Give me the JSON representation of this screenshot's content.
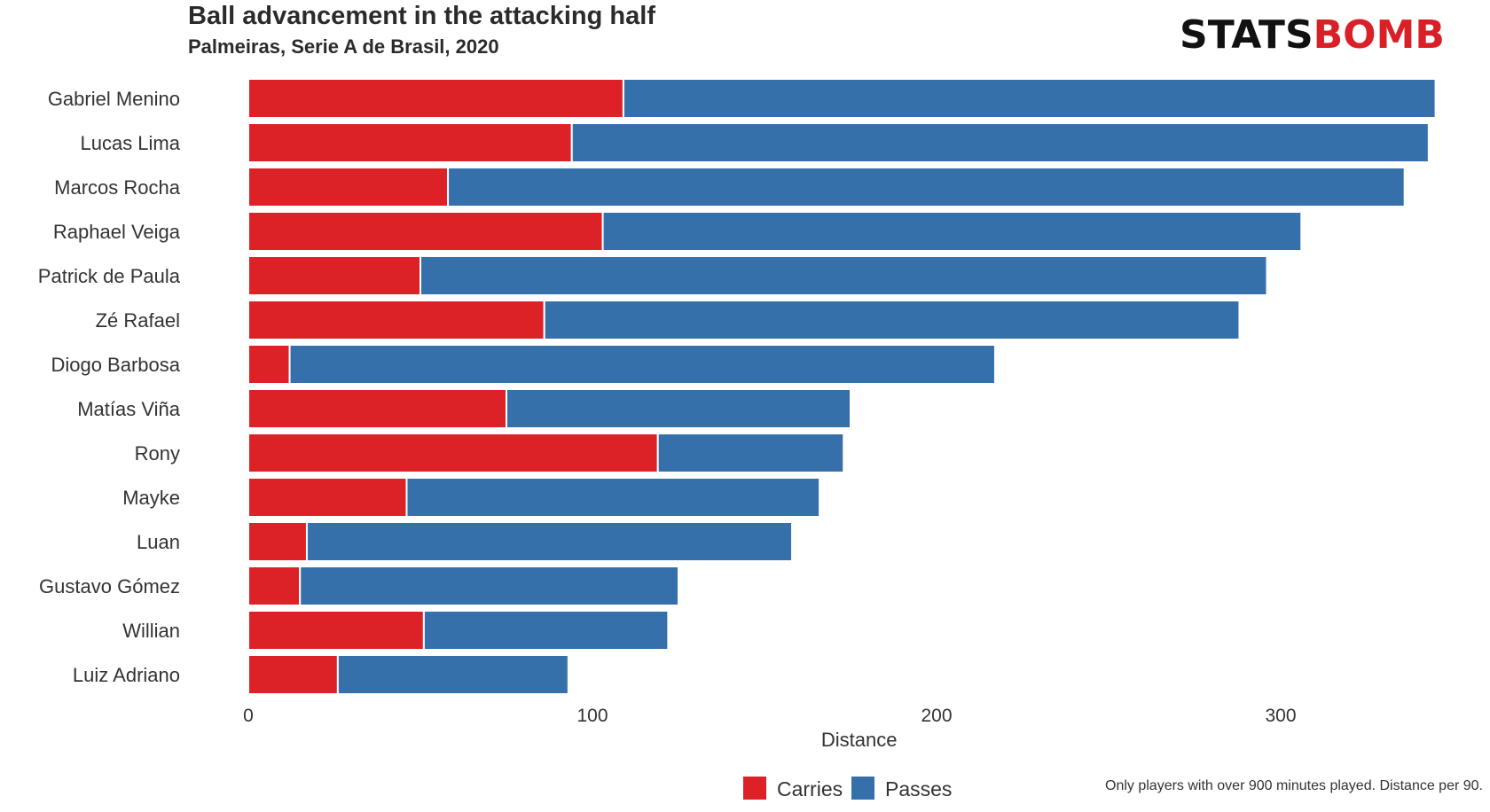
{
  "colors": {
    "carries": "#dc2127",
    "passes": "#3570aa",
    "text": "#333333"
  },
  "header": {
    "title": "Ball advancement in the attacking half",
    "subtitle": "Palmeiras, Serie A de Brasil, 2020",
    "logo_left": "STATS",
    "logo_right": "BOMB"
  },
  "footnote": "Only players with over 900 minutes played. Distance per 90.",
  "chart_data": {
    "type": "bar",
    "orientation": "horizontal",
    "stacked": true,
    "title": "Ball advancement in the attacking half",
    "subtitle": "Palmeiras, Serie A de Brasil, 2020",
    "xlabel": "Distance",
    "ylabel": "",
    "xlim": [
      0,
      355
    ],
    "xticks": [
      0,
      100,
      200,
      300
    ],
    "grid": false,
    "legend": "bottom",
    "categories": [
      "Gabriel Menino",
      "Lucas Lima",
      "Marcos Rocha",
      "Raphael Veiga",
      "Patrick de Paula",
      "Zé Rafael",
      "Diogo Barbosa",
      "Matías Viña",
      "Rony",
      "Mayke",
      "Luan",
      "Gustavo Gómez",
      "Willian",
      "Luiz Adriano"
    ],
    "series": [
      {
        "name": "Carries",
        "color": "#dc2127",
        "values": [
          109,
          94,
          58,
          103,
          50,
          86,
          12,
          75,
          119,
          46,
          17,
          15,
          51,
          26
        ]
      },
      {
        "name": "Passes",
        "color": "#3570aa",
        "values": [
          236,
          249,
          278,
          203,
          246,
          202,
          205,
          100,
          54,
          120,
          141,
          110,
          71,
          67
        ]
      }
    ]
  }
}
